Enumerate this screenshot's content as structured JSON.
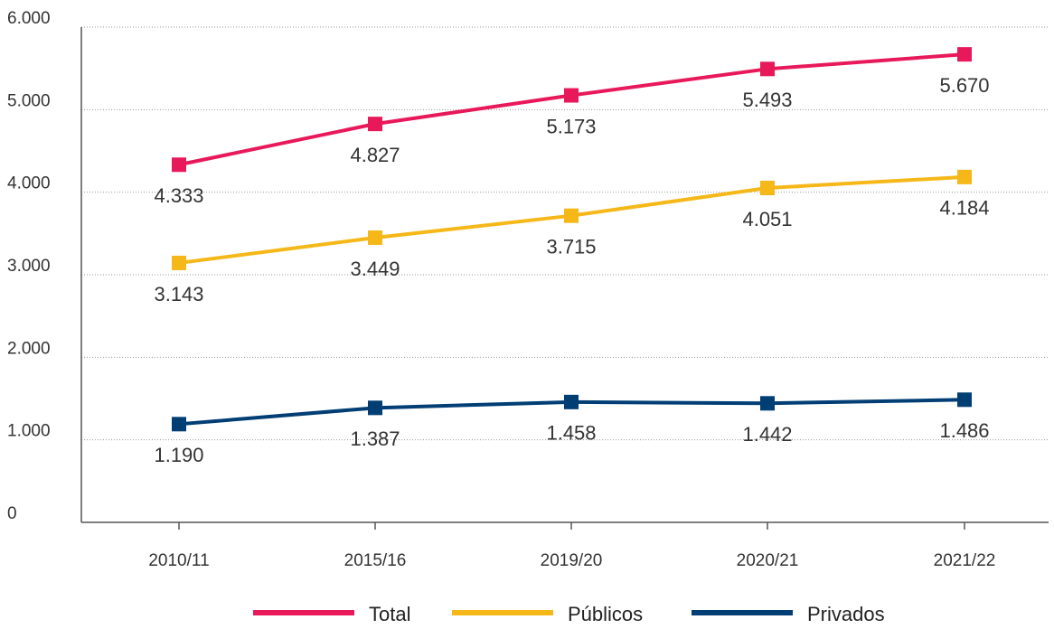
{
  "chart_data": {
    "type": "line",
    "categories": [
      "2010/11",
      "2015/16",
      "2019/20",
      "2020/21",
      "2021/22"
    ],
    "series": [
      {
        "name": "Total",
        "color": "#e8195a",
        "values": [
          4333,
          4827,
          5173,
          5493,
          5670
        ],
        "value_labels": [
          "4.333",
          "4.827",
          "5.173",
          "5.493",
          "5.670"
        ]
      },
      {
        "name": "Públicos",
        "color": "#f5b818",
        "values": [
          3143,
          3449,
          3715,
          4051,
          4184
        ],
        "value_labels": [
          "3.143",
          "3.449",
          "3.715",
          "4.051",
          "4.184"
        ]
      },
      {
        "name": "Privados",
        "color": "#003e74",
        "values": [
          1190,
          1387,
          1458,
          1442,
          1486
        ],
        "value_labels": [
          "1.190",
          "1.387",
          "1.458",
          "1.442",
          "1.486"
        ]
      }
    ],
    "ylim": [
      0,
      6000
    ],
    "yticks": [
      0,
      {
        "value": 1000,
        "label": "1.000"
      },
      {
        "value": 2000,
        "label": "2.000"
      },
      {
        "value": 3000,
        "label": "3.000"
      },
      {
        "value": 4000,
        "label": "4.000"
      },
      {
        "value": 5000,
        "label": "5.000"
      },
      {
        "value": 6000,
        "label": "6.000"
      }
    ],
    "grid": true,
    "legend": "bottom"
  }
}
